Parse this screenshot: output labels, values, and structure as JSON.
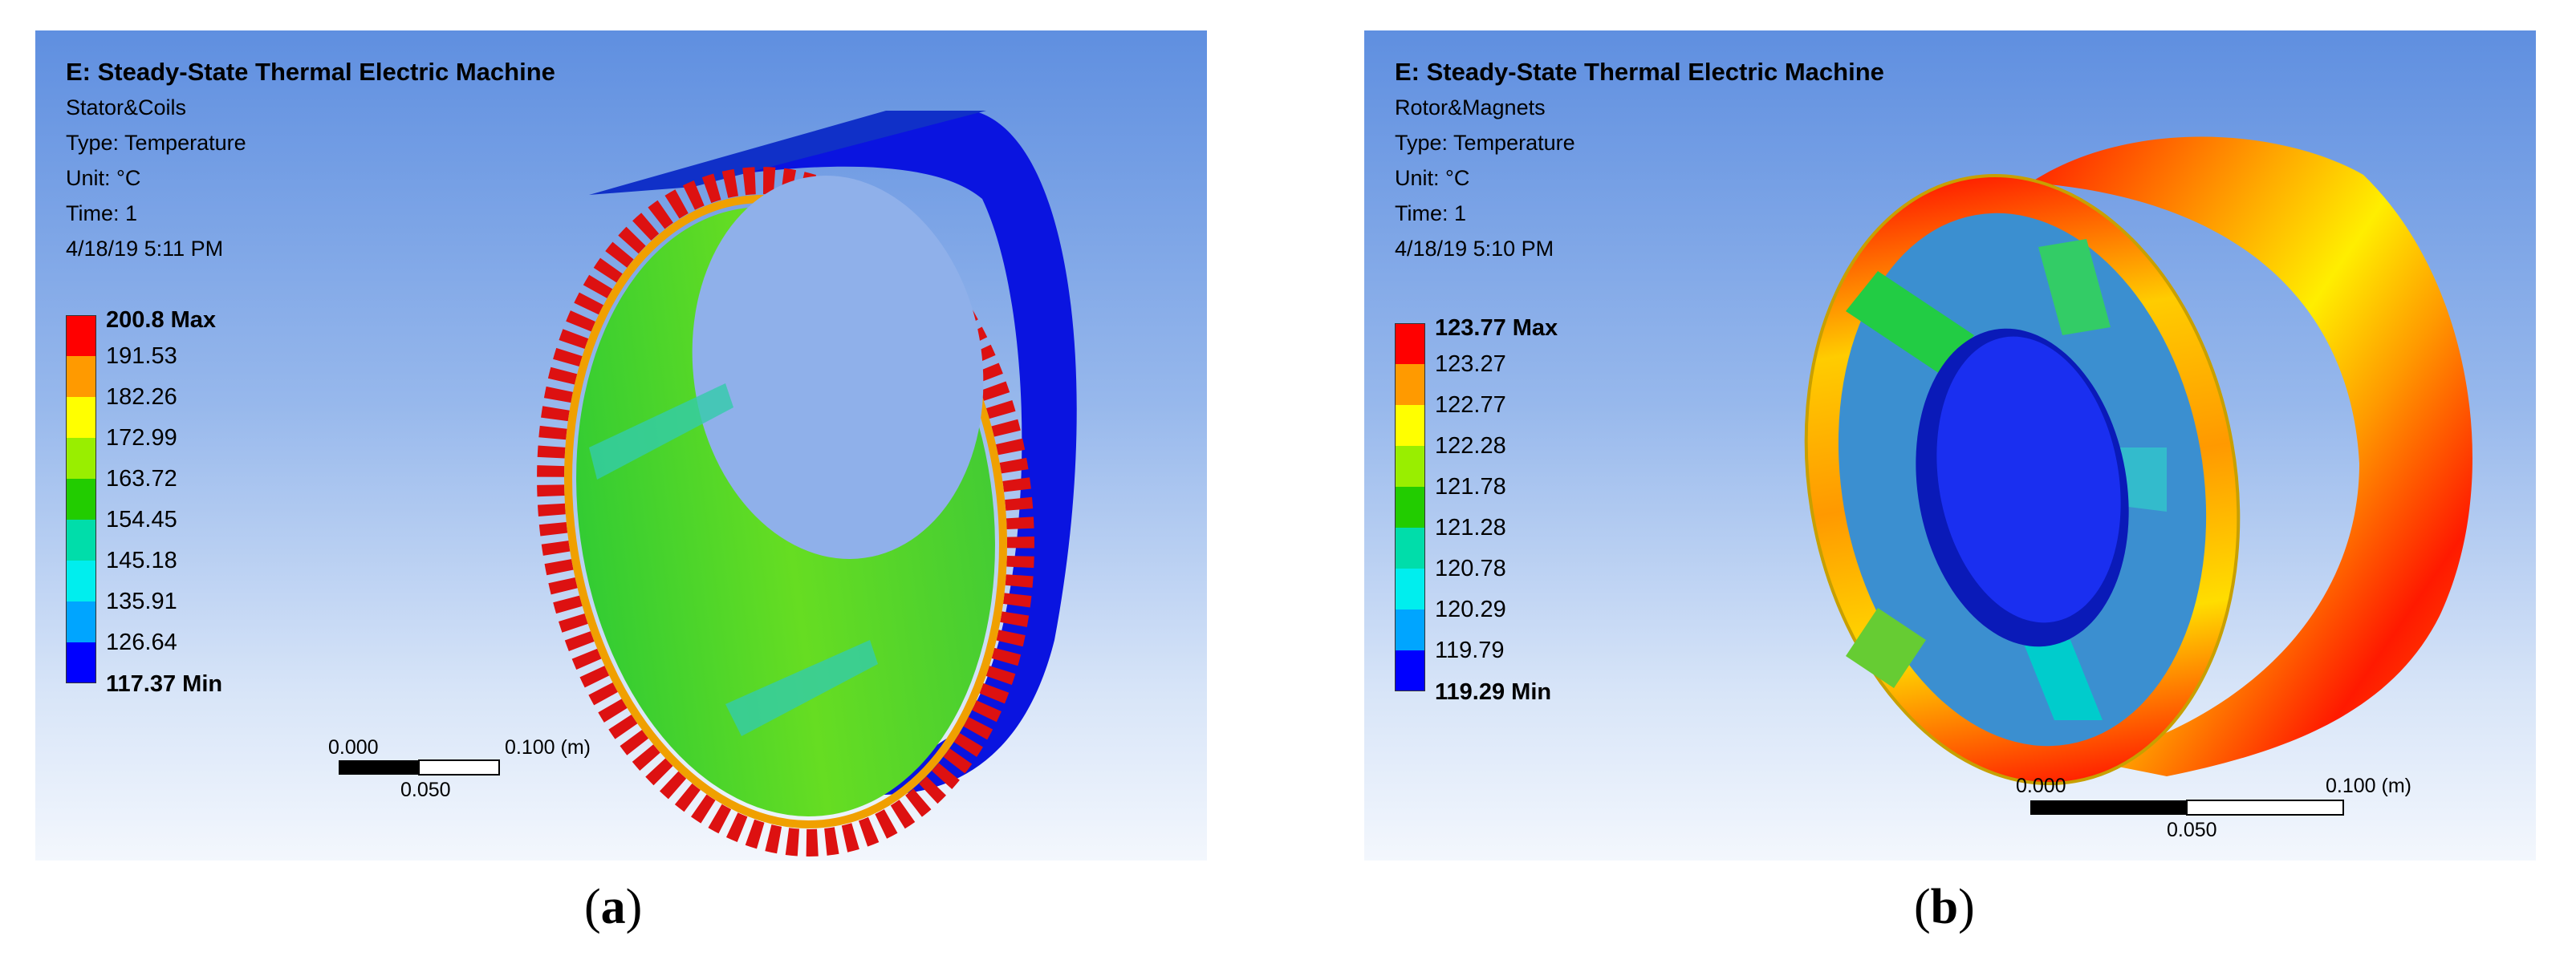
{
  "panels": [
    {
      "title": "E: Steady-State Thermal Electric Machine",
      "object_name": "Stator&Coils",
      "type_line": "Type: Temperature",
      "unit_line": "Unit: °C",
      "time_line": "Time: 1",
      "date_line": "4/18/19 5:11 PM",
      "legend": {
        "max_label": "200.8 Max",
        "min_label": "117.37 Min",
        "levels": [
          "191.53",
          "182.26",
          "172.99",
          "163.72",
          "154.45",
          "145.18",
          "135.91",
          "126.64"
        ],
        "colors": [
          "#ff0000",
          "#ff9a00",
          "#ffff00",
          "#99ee00",
          "#22cc00",
          "#00ddaa",
          "#00eeee",
          "#00a5ff",
          "#0000ff"
        ]
      },
      "scale_bar": {
        "left_label": "0.000",
        "right_label": "0.100 (m)",
        "mid_label": "0.050"
      },
      "caption_letter": "a"
    },
    {
      "title": "E: Steady-State Thermal Electric Machine",
      "object_name": "Rotor&Magnets",
      "type_line": "Type: Temperature",
      "unit_line": "Unit: °C",
      "time_line": "Time: 1",
      "date_line": "4/18/19 5:10 PM",
      "legend": {
        "max_label": "123.77 Max",
        "min_label": "119.29 Min",
        "levels": [
          "123.27",
          "122.77",
          "122.28",
          "121.78",
          "121.28",
          "120.78",
          "120.29",
          "119.79"
        ],
        "colors": [
          "#ff0000",
          "#ff9a00",
          "#ffff00",
          "#99ee00",
          "#22cc00",
          "#00ddaa",
          "#00eeee",
          "#00a5ff",
          "#0000ff"
        ]
      },
      "scale_bar": {
        "left_label": "0.000",
        "right_label": "0.100 (m)",
        "mid_label": "0.050"
      },
      "caption_letter": "b"
    }
  ]
}
